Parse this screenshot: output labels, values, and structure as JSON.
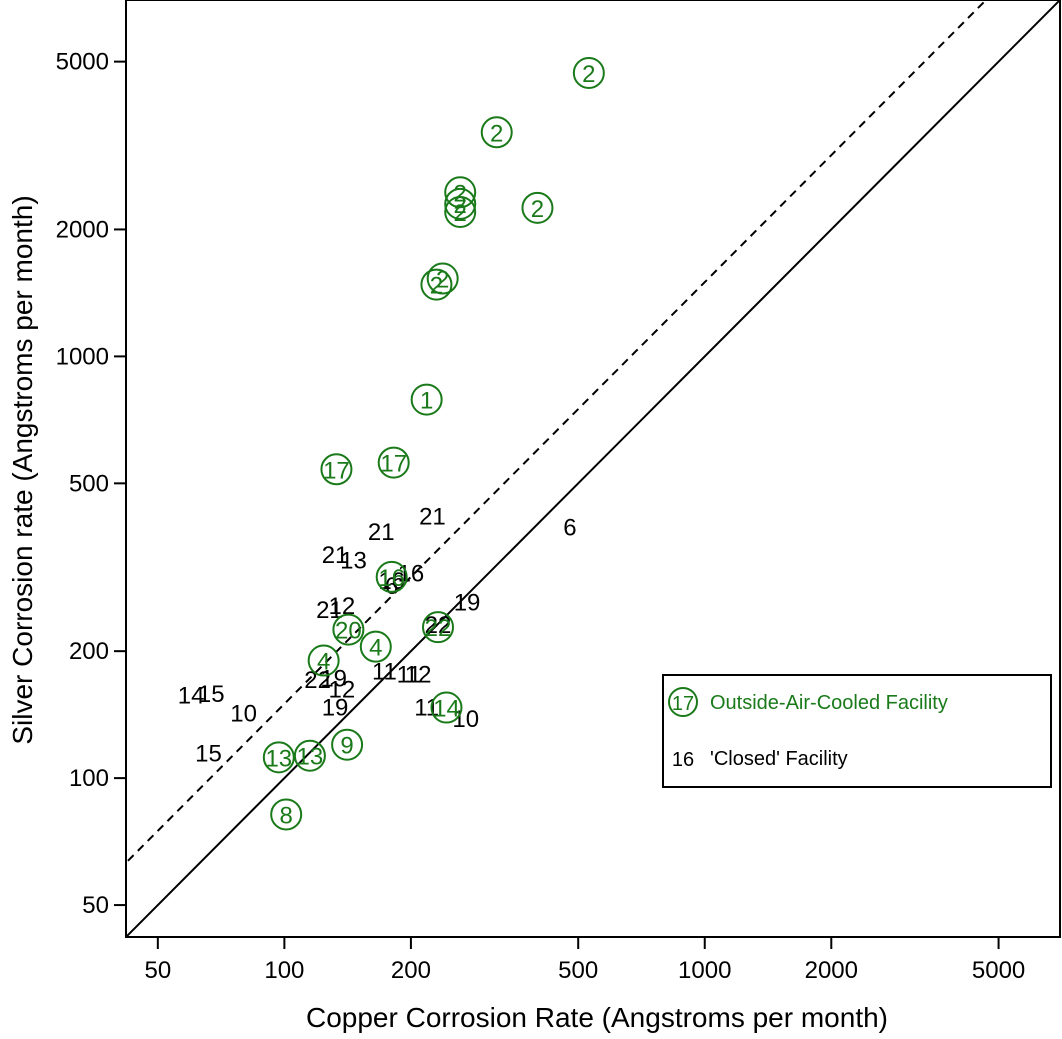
{
  "chart_data": {
    "type": "scatter",
    "xlabel": "Copper Corrosion Rate (Angstroms per month)",
    "ylabel": "Silver Corrosion rate (Angstroms per month)",
    "x_scale": "log",
    "y_scale": "log",
    "xlim": [
      42,
      7000
    ],
    "ylim": [
      42,
      7000
    ],
    "x_ticks": [
      50,
      100,
      200,
      500,
      1000,
      2000,
      5000
    ],
    "y_ticks": [
      50,
      100,
      200,
      500,
      1000,
      2000,
      5000
    ],
    "x_tick_labels": [
      "50",
      "100",
      "200",
      "500",
      "1000",
      "2000",
      "5000"
    ],
    "y_tick_labels": [
      "50",
      "100",
      "200",
      "500",
      "1000",
      "2000",
      "5000"
    ],
    "grid": false,
    "colors": {
      "outside": "#1a7a1a",
      "closed": "#000000"
    },
    "reference_lines": [
      {
        "style": "solid",
        "slope": 1,
        "description": "y = x"
      },
      {
        "style": "dashed",
        "slope": 1,
        "factor": 1.5
      }
    ],
    "legend": {
      "placement": "lower-right",
      "entries": [
        {
          "symbol": "17",
          "circled": true,
          "label": "Outside-Air-Cooled Facility",
          "color": "#1a7a1a"
        },
        {
          "symbol": "16",
          "circled": false,
          "label": "'Closed' Facility",
          "color": "#000000"
        }
      ]
    },
    "series": [
      {
        "name": "Outside-Air-Cooled Facility",
        "circled": true,
        "points": [
          {
            "x": 530,
            "y": 4700,
            "label": "2"
          },
          {
            "x": 320,
            "y": 3400,
            "label": "2"
          },
          {
            "x": 262,
            "y": 2450,
            "label": "2"
          },
          {
            "x": 262,
            "y": 2300,
            "label": "2"
          },
          {
            "x": 262,
            "y": 2200,
            "label": "2"
          },
          {
            "x": 400,
            "y": 2250,
            "label": "2"
          },
          {
            "x": 238,
            "y": 1530,
            "label": "2"
          },
          {
            "x": 230,
            "y": 1480,
            "label": "2"
          },
          {
            "x": 218,
            "y": 790,
            "label": "1"
          },
          {
            "x": 182,
            "y": 560,
            "label": "17"
          },
          {
            "x": 133,
            "y": 540,
            "label": "17"
          },
          {
            "x": 180,
            "y": 300,
            "label": "16"
          },
          {
            "x": 232,
            "y": 228,
            "label": "22"
          },
          {
            "x": 142,
            "y": 225,
            "label": "20"
          },
          {
            "x": 165,
            "y": 205,
            "label": "4"
          },
          {
            "x": 124,
            "y": 190,
            "label": "4"
          },
          {
            "x": 243,
            "y": 147,
            "label": "14"
          },
          {
            "x": 141,
            "y": 120,
            "label": "9"
          },
          {
            "x": 97,
            "y": 112,
            "label": "13"
          },
          {
            "x": 115,
            "y": 113,
            "label": "13"
          },
          {
            "x": 101,
            "y": 82,
            "label": "8"
          }
        ]
      },
      {
        "name": "'Closed' Facility",
        "circled": false,
        "points": [
          {
            "x": 225,
            "y": 420,
            "label": "21"
          },
          {
            "x": 170,
            "y": 385,
            "label": "21"
          },
          {
            "x": 478,
            "y": 395,
            "label": "6"
          },
          {
            "x": 132,
            "y": 340,
            "label": "21"
          },
          {
            "x": 146,
            "y": 330,
            "label": "13"
          },
          {
            "x": 200,
            "y": 307,
            "label": "16"
          },
          {
            "x": 180,
            "y": 295,
            "label": "16"
          },
          {
            "x": 180,
            "y": 287,
            "label": "6"
          },
          {
            "x": 272,
            "y": 262,
            "label": "19"
          },
          {
            "x": 137,
            "y": 257,
            "label": "12"
          },
          {
            "x": 128,
            "y": 252,
            "label": "21"
          },
          {
            "x": 232,
            "y": 232,
            "label": "22"
          },
          {
            "x": 173,
            "y": 180,
            "label": "11"
          },
          {
            "x": 208,
            "y": 177,
            "label": "12"
          },
          {
            "x": 198,
            "y": 177,
            "label": "11"
          },
          {
            "x": 120,
            "y": 172,
            "label": "22"
          },
          {
            "x": 131,
            "y": 173,
            "label": "19"
          },
          {
            "x": 60,
            "y": 158,
            "label": "14"
          },
          {
            "x": 67,
            "y": 159,
            "label": "15"
          },
          {
            "x": 137,
            "y": 163,
            "label": "12"
          },
          {
            "x": 132,
            "y": 148,
            "label": "19"
          },
          {
            "x": 80,
            "y": 143,
            "label": "10"
          },
          {
            "x": 218,
            "y": 148,
            "label": "11"
          },
          {
            "x": 270,
            "y": 139,
            "label": "10"
          },
          {
            "x": 66,
            "y": 115,
            "label": "15"
          }
        ]
      }
    ]
  }
}
